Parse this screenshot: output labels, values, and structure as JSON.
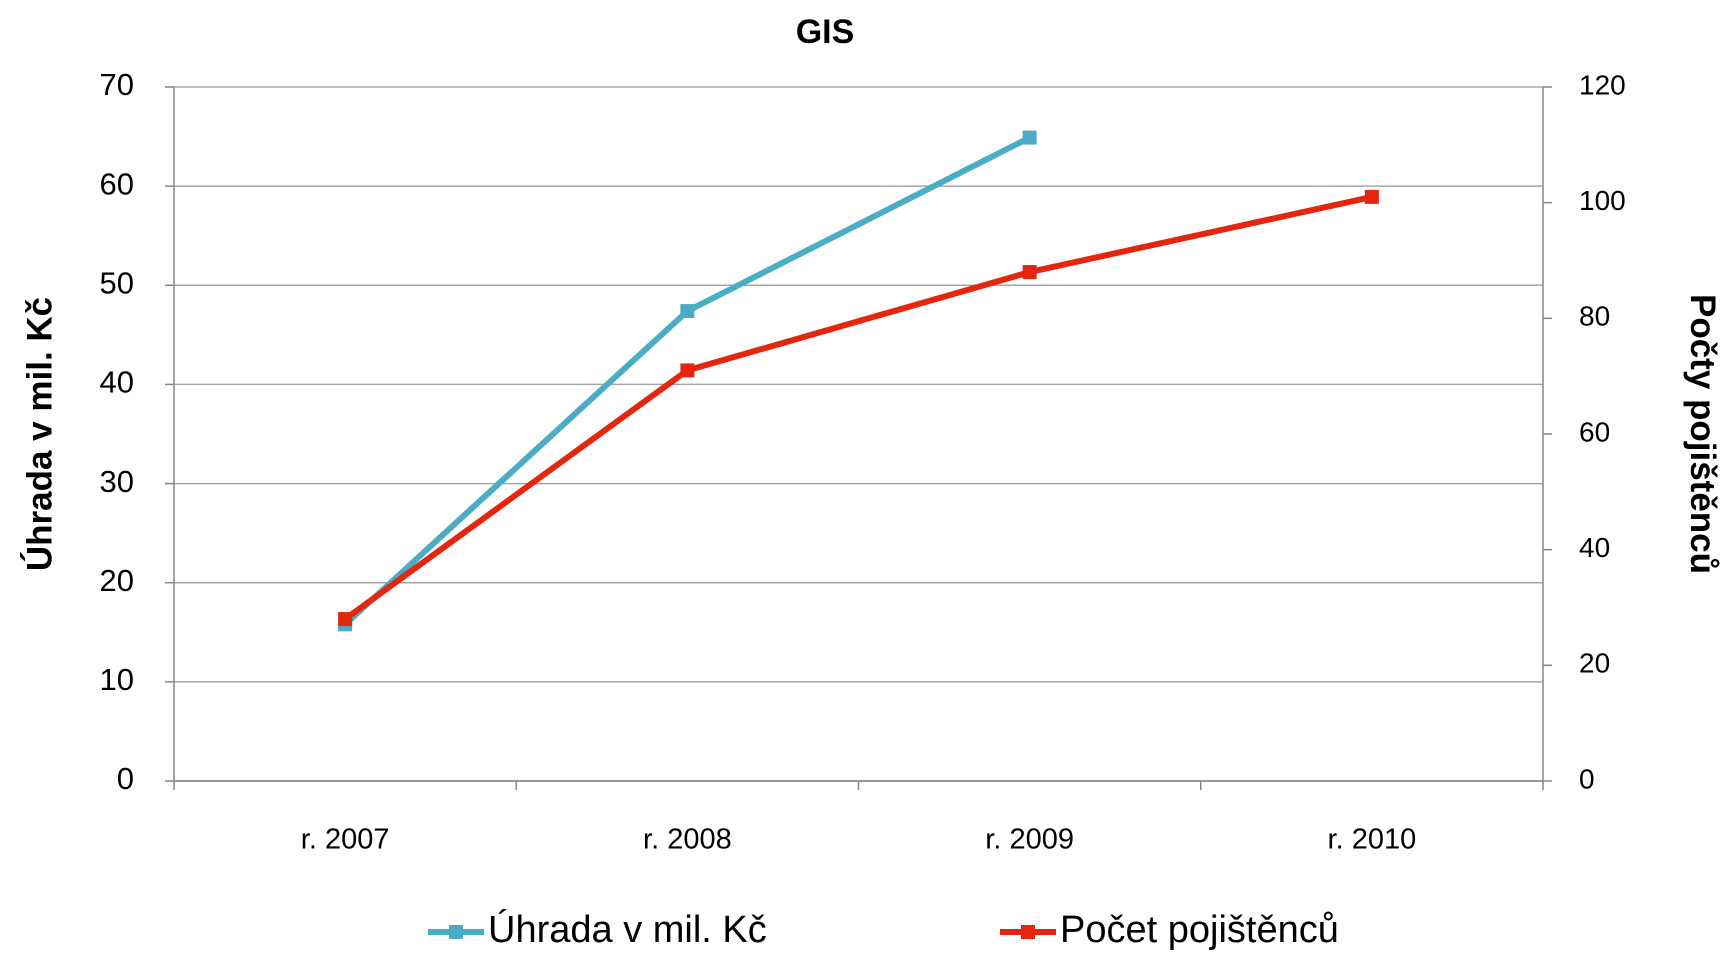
{
  "chart_data": {
    "type": "line",
    "title": "GIS",
    "categories": [
      "r. 2007",
      "r. 2008",
      "r. 2009",
      "r. 2010"
    ],
    "series": [
      {
        "name": "Úhrada v mil. Kč",
        "color": "#4bacc6",
        "values": [
          15.8,
          47.4,
          64.9,
          null
        ]
      },
      {
        "name": "Počet pojištěnců",
        "color": "#e3260d",
        "values": [
          28,
          71,
          88,
          101
        ],
        "axis": "y2"
      }
    ],
    "ylabel": "Úhrada v mil. Kč",
    "y2label": "Počty pojištěnců",
    "ylim": [
      0,
      70
    ],
    "yticks": [
      0,
      10,
      20,
      30,
      40,
      50,
      60,
      70
    ],
    "y2lim": [
      0,
      120
    ],
    "y2ticks": [
      0,
      20,
      40,
      60,
      80,
      100,
      120
    ],
    "grid": true,
    "legend": "bottom"
  }
}
